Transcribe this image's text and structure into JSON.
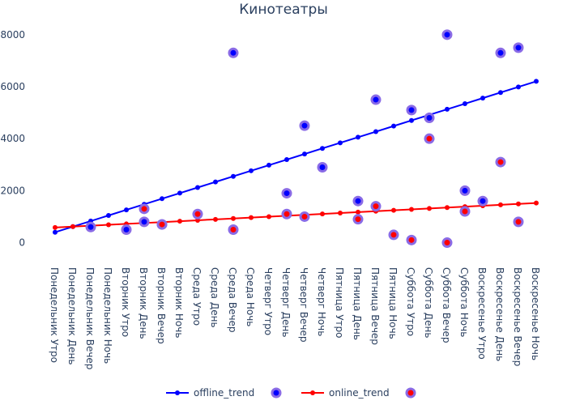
{
  "chart_data": {
    "type": "line",
    "title": "Кинотеатры",
    "xlabel": "",
    "ylabel": "",
    "ylim": [
      -700,
      8400
    ],
    "yticks": [
      0,
      2000,
      4000,
      6000,
      8000
    ],
    "ytick_labels": [
      "0",
      "2000",
      "4000",
      "6000",
      "8000"
    ],
    "grid": false,
    "legend_position": "bottom",
    "categories": [
      "Понедельник Утро",
      "Понедельник День",
      "Понедельник Вечер",
      "Понедельник Ночь",
      "Вторник Утро",
      "Вторник День",
      "Вторник Вечер",
      "Вторник Ночь",
      "Среда Утро",
      "Среда День",
      "Среда Вечер",
      "Среда Ночь",
      "Четверг Утро",
      "Четверг День",
      "Четверг Вечер",
      "Четверг Ночь",
      "Пятница Утро",
      "Пятница День",
      "Пятница Вечер",
      "Пятница Ночь",
      "Суббота Утро",
      "Суббота День",
      "Суббота Вечер",
      "Суббота Ночь",
      "Воскресенье Утро",
      "Воскресенье День",
      "Воскресенье Вечер",
      "Воскресенье Ночь"
    ],
    "series": [
      {
        "name": "offline_trend",
        "kind": "line",
        "color": "#0000ff",
        "values": [
          400,
          615,
          830,
          1045,
          1260,
          1475,
          1690,
          1905,
          2120,
          2335,
          2550,
          2765,
          2980,
          3195,
          3410,
          3625,
          3840,
          4055,
          4270,
          4485,
          4700,
          4915,
          5130,
          5345,
          5560,
          5775,
          5990,
          6205
        ]
      },
      {
        "name": "",
        "kind": "scatter",
        "color": "#0000ff",
        "outline": "#8a6be6",
        "points": [
          [
            "Понедельник Вечер",
            600
          ],
          [
            "Вторник Утро",
            500
          ],
          [
            "Вторник День",
            800
          ],
          [
            "Вторник Вечер",
            700
          ],
          [
            "Среда Вечер",
            7300
          ],
          [
            "Четверг День",
            1900
          ],
          [
            "Четверг Вечер",
            4500
          ],
          [
            "Четверг Ночь",
            2900
          ],
          [
            "Пятница День",
            1600
          ],
          [
            "Пятница Вечер",
            5500
          ],
          [
            "Суббота Утро",
            5100
          ],
          [
            "Суббота День",
            4800
          ],
          [
            "Суббота Вечер",
            8000
          ],
          [
            "Суббота Ночь",
            2000
          ],
          [
            "Воскресенье Утро",
            1600
          ],
          [
            "Воскресенье День",
            7300
          ],
          [
            "Воскресенье Вечер",
            7500
          ]
        ]
      },
      {
        "name": "online_trend",
        "kind": "line",
        "color": "#ff0000",
        "values": [
          580,
          615,
          650,
          685,
          720,
          755,
          790,
          825,
          860,
          895,
          930,
          965,
          1000,
          1035,
          1070,
          1105,
          1140,
          1175,
          1210,
          1245,
          1280,
          1315,
          1350,
          1385,
          1420,
          1455,
          1490,
          1525
        ]
      },
      {
        "name": "",
        "kind": "scatter",
        "color": "#ff0000",
        "outline": "#8a6be6",
        "points": [
          [
            "Вторник День",
            1300
          ],
          [
            "Вторник Вечер",
            700
          ],
          [
            "Среда Утро",
            1100
          ],
          [
            "Среда Вечер",
            500
          ],
          [
            "Четверг День",
            1100
          ],
          [
            "Четверг Вечер",
            1000
          ],
          [
            "Пятница День",
            900
          ],
          [
            "Пятница Вечер",
            1400
          ],
          [
            "Пятница Ночь",
            300
          ],
          [
            "Суббота Утро",
            100
          ],
          [
            "Суббота День",
            4000
          ],
          [
            "Суббота Вечер",
            0
          ],
          [
            "Суббота Ночь",
            1200
          ],
          [
            "Воскресенье День",
            3100
          ],
          [
            "Воскресенье Вечер",
            800
          ]
        ]
      }
    ]
  }
}
